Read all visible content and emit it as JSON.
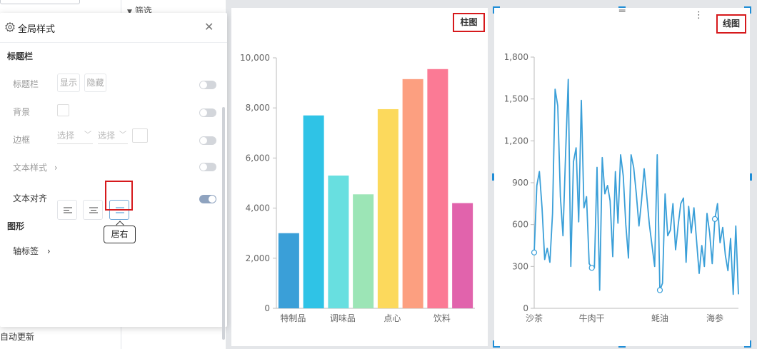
{
  "background": {
    "filter_label": "筛选",
    "auto_update_label": "自动更新"
  },
  "panel": {
    "title": "全局样式",
    "icon": "gear-icon",
    "section_titlebar": "标题栏",
    "rows": {
      "titlebar_label": "标题栏",
      "show_btn": "显示",
      "hide_btn": "隐藏",
      "background_label": "背景",
      "border_label": "边框",
      "border_select_1": "选择",
      "border_select_2": "选择",
      "text_style_label": "文本样式",
      "text_align_label": "文本对齐"
    },
    "tooltip": "居右",
    "section_graphic": "图形",
    "axis_label": "轴标签",
    "toggles": {
      "titlebar": false,
      "background": false,
      "border": false,
      "text_style": false,
      "text_align": true
    }
  },
  "chart1_tag": "柱图",
  "chart2_tag": "线图",
  "colors": {
    "accent": "#1f8dd6",
    "highlight_red": "#d6191c",
    "bar_palette": [
      "#3a9fd8",
      "#2fc3e6",
      "#68dfe0",
      "#9ce5b6",
      "#fcd95c",
      "#fc9f80",
      "#fb7a95",
      "#e163ac"
    ]
  },
  "chart_data": [
    {
      "type": "bar",
      "categories": [
        "特制品",
        "",
        "调味品",
        "",
        "点心",
        "",
        "饮料",
        ""
      ],
      "values": [
        3000,
        7700,
        5300,
        4550,
        7950,
        9150,
        9550,
        4200
      ],
      "xticks": [
        "特制品",
        "调味品",
        "点心",
        "饮料"
      ],
      "yticks": [
        "0",
        "2,000",
        "4,000",
        "6,000",
        "8,000",
        "10,000"
      ],
      "ylim": [
        0,
        10000
      ],
      "grid": false
    },
    {
      "type": "line",
      "xticks": [
        "沙茶",
        "牛肉干",
        "蚝油",
        "海参"
      ],
      "yticks": [
        "0",
        "300",
        "600",
        "900",
        "1,200",
        "1,500",
        "1,800"
      ],
      "ylim": [
        0,
        1800
      ],
      "color": "#3a9fd8",
      "values": [
        400,
        880,
        980,
        720,
        350,
        430,
        330,
        680,
        1570,
        1450,
        800,
        520,
        1110,
        1640,
        300,
        1050,
        1150,
        620,
        1490,
        720,
        800,
        320,
        290,
        290,
        1010,
        130,
        1080,
        820,
        880,
        770,
        370,
        980,
        610,
        1100,
        950,
        600,
        360,
        1100,
        1010,
        820,
        590,
        770,
        1000,
        800,
        600,
        450,
        300,
        1100,
        130,
        180,
        820,
        520,
        560,
        750,
        420,
        600,
        750,
        790,
        330,
        730,
        540,
        720,
        490,
        250,
        450,
        300,
        680,
        540,
        320,
        640,
        750,
        470,
        580,
        380,
        270,
        500,
        100,
        590,
        100
      ],
      "markers": [
        0,
        22,
        48,
        69
      ]
    }
  ]
}
